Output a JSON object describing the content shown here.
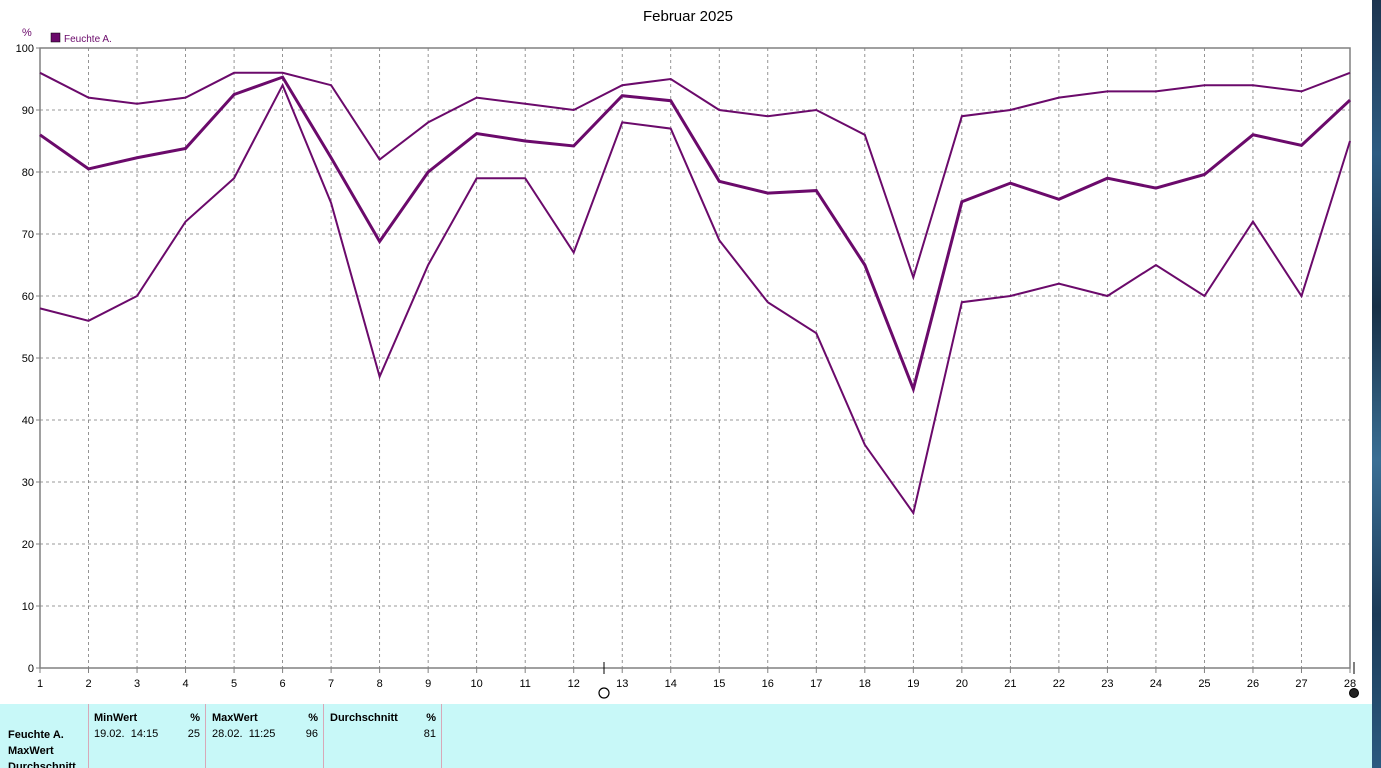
{
  "chart_data": {
    "type": "line",
    "title": "Februar 2025",
    "ylabel": "%",
    "xlabel": "",
    "legend": "top-left",
    "grid": true,
    "ylim": [
      0,
      100
    ],
    "xlim": [
      1,
      28
    ],
    "y_ticks": [
      "0",
      "10",
      "20",
      "30",
      "40",
      "50",
      "60",
      "70",
      "80",
      "90",
      "100"
    ],
    "x_ticks": [
      "1",
      "2",
      "3",
      "4",
      "5",
      "6",
      "7",
      "8",
      "9",
      "10",
      "11",
      "12",
      "13",
      "14",
      "15",
      "16",
      "17",
      "18",
      "19",
      "20",
      "21",
      "22",
      "23",
      "24",
      "25",
      "26",
      "27",
      "28"
    ],
    "x": [
      1,
      2,
      3,
      4,
      5,
      6,
      7,
      8,
      9,
      10,
      11,
      12,
      13,
      14,
      15,
      16,
      17,
      18,
      19,
      20,
      21,
      22,
      23,
      24,
      25,
      26,
      27,
      28
    ],
    "series": [
      {
        "name": "Feuchte A.",
        "color": "#6b0a6b",
        "values": [
          86,
          80.5,
          82.3,
          83.8,
          92.5,
          95.3,
          82.3,
          68.8,
          80,
          86.2,
          85,
          84.2,
          92.3,
          91.5,
          78.5,
          76.6,
          77,
          65,
          45,
          75.2,
          78.2,
          75.6,
          79,
          77.4,
          79.6,
          86,
          84.3,
          91.6
        ]
      },
      {
        "color": "#6b0a6b",
        "values": [
          96,
          92,
          91,
          92,
          96,
          96,
          94,
          82,
          88,
          92,
          91,
          90,
          94,
          95,
          90,
          89,
          90,
          86,
          63,
          89,
          90,
          92,
          93,
          93,
          94,
          94,
          93,
          96
        ]
      },
      {
        "color": "#6b0a6b",
        "values": [
          58,
          56,
          60,
          72,
          79,
          94,
          75,
          47,
          65,
          79,
          79,
          67,
          88,
          87,
          69,
          59,
          54,
          36,
          25,
          59,
          60,
          62,
          60,
          65,
          60,
          72,
          60,
          85
        ]
      }
    ]
  },
  "stats": {
    "row_labels": [
      "Feuchte A.",
      "MaxWert",
      "Durchschnitt"
    ],
    "min": {
      "header": "MinWert",
      "unit": "%",
      "time": "19.02.  14:15",
      "value": "25"
    },
    "max": {
      "header": "MaxWert",
      "unit": "%",
      "time": "28.02.  11:25",
      "value": "96"
    },
    "avg": {
      "header": "Durchschnitt",
      "unit": "%",
      "value": "81"
    }
  }
}
